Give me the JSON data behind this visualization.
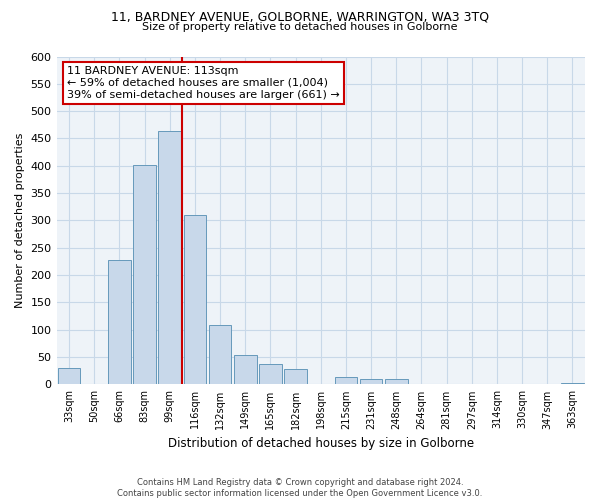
{
  "title": "11, BARDNEY AVENUE, GOLBORNE, WARRINGTON, WA3 3TQ",
  "subtitle": "Size of property relative to detached houses in Golborne",
  "xlabel": "Distribution of detached houses by size in Golborne",
  "ylabel": "Number of detached properties",
  "bar_labels": [
    "33sqm",
    "50sqm",
    "66sqm",
    "83sqm",
    "99sqm",
    "116sqm",
    "132sqm",
    "149sqm",
    "165sqm",
    "182sqm",
    "198sqm",
    "215sqm",
    "231sqm",
    "248sqm",
    "264sqm",
    "281sqm",
    "297sqm",
    "314sqm",
    "330sqm",
    "347sqm",
    "363sqm"
  ],
  "bar_values": [
    30,
    0,
    228,
    401,
    463,
    310,
    109,
    54,
    37,
    29,
    0,
    14,
    10,
    10,
    0,
    0,
    0,
    0,
    0,
    0,
    3
  ],
  "bar_color": "#c8d8ea",
  "bar_edge_color": "#6699bb",
  "vline_x": 4.5,
  "vline_color": "#cc0000",
  "annotation_title": "11 BARDNEY AVENUE: 113sqm",
  "annotation_line1": "← 59% of detached houses are smaller (1,004)",
  "annotation_line2": "39% of semi-detached houses are larger (661) →",
  "annotation_box_color": "#ffffff",
  "annotation_box_edge": "#cc0000",
  "ylim": [
    0,
    600
  ],
  "yticks": [
    0,
    50,
    100,
    150,
    200,
    250,
    300,
    350,
    400,
    450,
    500,
    550,
    600
  ],
  "footer1": "Contains HM Land Registry data © Crown copyright and database right 2024.",
  "footer2": "Contains public sector information licensed under the Open Government Licence v3.0.",
  "bg_color": "#ffffff",
  "grid_color": "#c8d8e8",
  "plot_bg_color": "#eef3f8"
}
